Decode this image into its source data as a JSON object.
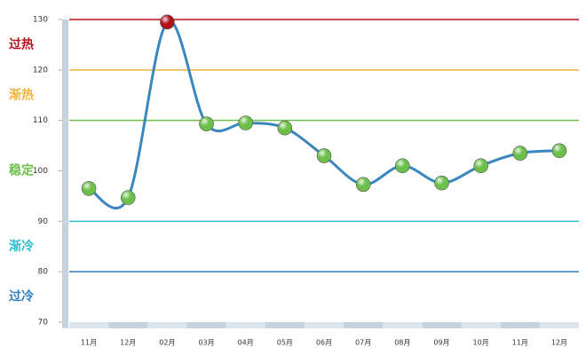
{
  "chart_data": {
    "type": "line",
    "categories": [
      "11月",
      "12月",
      "02月",
      "03月",
      "04月",
      "05月",
      "06月",
      "07月",
      "08月",
      "09月",
      "10月",
      "11月",
      "12月"
    ],
    "values": [
      96.5,
      94.7,
      129.5,
      109.3,
      109.5,
      108.5,
      103,
      97.3,
      101,
      97.6,
      101,
      103.5,
      104
    ],
    "color": "#3a87c0",
    "ylim": [
      70,
      130
    ],
    "yticks": [
      70,
      80,
      90,
      100,
      110,
      120,
      130
    ],
    "bands": [
      {
        "label": "过热",
        "range": [
          120,
          130
        ],
        "color": "#b0121b"
      },
      {
        "label": "渐热",
        "range": [
          110,
          120
        ],
        "color": "#f0b43c"
      },
      {
        "label": "稳定",
        "range": [
          90,
          110
        ],
        "color": "#6cc04a"
      },
      {
        "label": "渐冷",
        "range": [
          80,
          90
        ],
        "color": "#2fbcd0"
      },
      {
        "label": "过冷",
        "range": [
          70,
          80
        ],
        "color": "#2e7fc0"
      }
    ]
  }
}
